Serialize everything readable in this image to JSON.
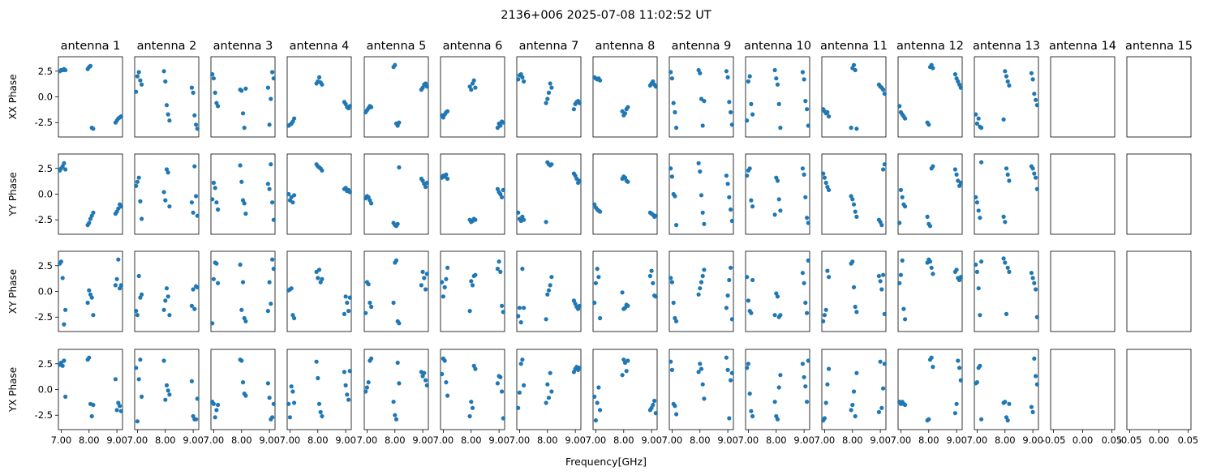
{
  "figure": {
    "title": "2136+006 2025-07-08 11:02:52 UT",
    "xlabel": "Frequency[GHz]"
  },
  "chart_data": {
    "type": "scatter",
    "title": "2136+006 2025-07-08 11:02:52 UT",
    "xlabel": "Frequency[GHz]",
    "point_color": "#1f77b4",
    "antennas": [
      "antenna 1",
      "antenna 2",
      "antenna 3",
      "antenna 4",
      "antenna 5",
      "antenna 6",
      "antenna 7",
      "antenna 8",
      "antenna 9",
      "antenna 10",
      "antenna 11",
      "antenna 12",
      "antenna 13",
      "antenna 14",
      "antenna 15"
    ],
    "rows": [
      "XX Phase",
      "YY Phase",
      "XY Phase",
      "YX Phase"
    ],
    "x_ticks": [
      "7.00",
      "8.00",
      "9.00"
    ],
    "x_ticks_empty": [
      "-0.05",
      "0.00",
      "0.05"
    ],
    "y_ticks": [
      "2.5",
      "0.0",
      "-2.5"
    ],
    "xlim": [
      6.9,
      9.2
    ],
    "ylim": [
      -3.9,
      3.9
    ],
    "freqs": [
      6.95,
      7.0,
      7.05,
      7.1,
      7.15,
      7.95,
      8.0,
      8.05,
      8.1,
      8.15,
      8.95,
      9.0,
      9.05,
      9.1,
      9.15
    ],
    "panels": [
      [
        [
          2.5,
          2.6,
          2.6,
          2.7,
          2.6,
          2.7,
          2.9,
          3.0,
          -3.0,
          -3.1,
          -2.5,
          -2.3,
          -2.1,
          -2.0,
          -1.9
        ],
        [
          0.5,
          2.0,
          2.4,
          1.6,
          1.2,
          2.5,
          1.5,
          -0.8,
          -1.7,
          -2.3,
          0.9,
          0.4,
          -1.8,
          -2.7,
          -3.1
        ],
        [
          2.2,
          1.8,
          0.4,
          -0.6,
          -0.9,
          0.7,
          0.6,
          -1.6,
          -3.0,
          0.8,
          0.9,
          -2.7,
          -0.2,
          2.4,
          1.8
        ],
        [
          -2.8,
          -2.7,
          -2.6,
          -2.4,
          -2.1,
          1.3,
          1.5,
          1.9,
          1.4,
          1.2,
          -0.5,
          -0.7,
          -1.0,
          -1.1,
          -0.9
        ],
        [
          -1.5,
          -1.3,
          -1.1,
          -0.9,
          -1.0,
          2.9,
          3.1,
          -2.6,
          -2.8,
          -2.5,
          0.7,
          0.9,
          1.2,
          1.3,
          1.0
        ],
        [
          -1.8,
          -2.0,
          -1.7,
          -1.5,
          -1.4,
          1.0,
          0.7,
          1.3,
          1.6,
          0.9,
          -3.0,
          -2.6,
          -2.8,
          -2.4,
          -2.5
        ],
        [
          1.7,
          2.1,
          2.2,
          1.9,
          1.5,
          -0.6,
          -0.2,
          0.4,
          1.3,
          0.9,
          -1.2,
          -0.7,
          -0.5,
          -0.4,
          -0.6
        ],
        [
          1.9,
          1.8,
          1.7,
          1.8,
          1.6,
          -1.4,
          -1.8,
          -1.6,
          -1.2,
          -1.0,
          1.1,
          1.3,
          1.5,
          1.2,
          1.0
        ],
        [
          2.4,
          1.8,
          -0.6,
          -1.5,
          -3.0,
          2.6,
          2.3,
          -0.2,
          -2.8,
          -0.4,
          2.5,
          1.9,
          -0.5,
          -1.5,
          -2.7
        ],
        [
          -2.3,
          1.5,
          2.0,
          -0.7,
          -1.7,
          2.6,
          1.8,
          1.2,
          -0.7,
          -3.0,
          2.4,
          1.7,
          -0.4,
          -1.2,
          -2.8
        ],
        [
          -1.2,
          -1.4,
          -1.6,
          -1.5,
          -1.9,
          -3.0,
          2.8,
          3.1,
          2.6,
          -3.1,
          1.2,
          1.0,
          0.9,
          0.7,
          0.3
        ],
        [
          -0.9,
          -1.5,
          -1.7,
          -1.9,
          -2.1,
          -2.5,
          -2.7,
          2.9,
          3.1,
          2.8,
          2.2,
          1.8,
          1.5,
          1.2,
          0.9
        ],
        [
          -1.7,
          -2.6,
          -2.1,
          -2.9,
          -3.0,
          -2.2,
          2.5,
          2.0,
          1.5,
          1.1,
          2.3,
          1.7,
          0.3,
          -0.3,
          -0.8
        ],
        [],
        []
      ],
      [
        [
          2.3,
          2.5,
          2.7,
          3.0,
          2.4,
          -3.0,
          -2.8,
          -2.4,
          -2.1,
          -1.8,
          -1.9,
          -1.7,
          -1.4,
          -1.0,
          -1.2
        ],
        [
          0.8,
          1.2,
          1.6,
          -0.7,
          -2.4,
          0.2,
          -0.6,
          2.4,
          2.1,
          -1.2,
          -0.8,
          -1.8,
          2.7,
          -0.2,
          -2.1
        ],
        [
          -0.5,
          1.1,
          0.6,
          -0.8,
          -1.5,
          2.8,
          1.2,
          -0.6,
          -0.9,
          -1.9,
          1.0,
          0.5,
          2.9,
          -0.8,
          -2.5
        ],
        [
          0.0,
          -0.6,
          -0.3,
          -0.8,
          -0.1,
          2.9,
          2.7,
          2.6,
          2.5,
          2.3,
          0.5,
          0.6,
          0.3,
          0.4,
          0.2
        ],
        [
          -0.4,
          -0.2,
          -0.3,
          -0.6,
          -0.9,
          -2.8,
          -3.0,
          -3.1,
          -2.9,
          2.6,
          1.5,
          1.3,
          1.0,
          0.7,
          1.1
        ],
        [
          1.6,
          1.8,
          1.7,
          1.9,
          1.5,
          -2.5,
          -2.7,
          -2.6,
          -2.4,
          -2.5,
          0.5,
          0.2,
          0.0,
          -0.3,
          0.4
        ],
        [
          -1.8,
          -2.4,
          -2.6,
          -2.2,
          -2.5,
          -2.7,
          3.1,
          2.9,
          2.8,
          2.9,
          2.0,
          1.8,
          1.5,
          1.1,
          1.3
        ],
        [
          -1.0,
          -1.3,
          -1.5,
          -1.6,
          -1.7,
          1.5,
          1.7,
          1.6,
          1.3,
          1.2,
          -1.8,
          -1.9,
          -2.0,
          -2.2,
          -2.1
        ],
        [
          2.5,
          1.7,
          0.0,
          -0.2,
          -3.0,
          3.0,
          2.2,
          -0.1,
          -1.8,
          -2.9,
          1.8,
          1.0,
          -0.3,
          -1.5,
          -2.6
        ],
        [
          1.8,
          2.3,
          2.5,
          -0.6,
          -1.2,
          -2.0,
          1.6,
          1.3,
          -0.5,
          -1.6,
          2.5,
          1.9,
          -0.3,
          -2.3,
          -2.8
        ],
        [
          2.0,
          1.6,
          1.1,
          0.7,
          0.4,
          -0.2,
          -0.5,
          -1.0,
          -1.7,
          -2.2,
          -2.5,
          -2.7,
          -3.0,
          2.4,
          2.9
        ],
        [
          -2.8,
          0.4,
          -0.3,
          -1.0,
          -1.2,
          -2.2,
          -2.9,
          -3.1,
          2.5,
          2.7,
          2.4,
          1.9,
          1.3,
          0.8,
          1.1
        ],
        [
          -0.3,
          -0.8,
          -1.6,
          -2.3,
          3.1,
          -2.2,
          -2.7,
          2.5,
          1.9,
          1.3,
          2.7,
          2.5,
          2.0,
          1.6,
          0.5
        ],
        [],
        []
      ],
      [
        [
          2.7,
          2.9,
          1.3,
          -3.2,
          -1.8,
          -1.1,
          0.1,
          -0.3,
          -0.6,
          -2.3,
          0.6,
          1.2,
          3.1,
          0.3,
          0.6
        ],
        [
          -1.9,
          -2.3,
          1.5,
          -0.6,
          -0.3,
          -1.8,
          -0.9,
          0.3,
          -0.5,
          -2.3,
          -1.4,
          0.2,
          -1.7,
          0.5,
          0.4
        ],
        [
          -3.1,
          1.2,
          2.8,
          2.7,
          0.8,
          2.6,
          -1.8,
          0.9,
          -2.6,
          -2.9,
          -1.9,
          0.9,
          -1.2,
          3.1,
          2.2
        ],
        [
          0.1,
          0.2,
          0.3,
          -2.3,
          -2.6,
          1.9,
          1.3,
          2.1,
          0.9,
          1.2,
          -2.2,
          -0.5,
          -1.1,
          -1.9,
          -0.6
        ],
        [
          -2.1,
          0.9,
          0.7,
          -1.1,
          -1.5,
          -1.1,
          2.8,
          3.0,
          -2.9,
          -3.1,
          0.6,
          1.9,
          1.3,
          0.2,
          1.7
        ],
        [
          0.9,
          -0.5,
          0.4,
          1.2,
          2.3,
          -1.9,
          1.0,
          0.6,
          1.5,
          1.6,
          2.2,
          2.9,
          1.9,
          -1.4,
          -2.0
        ],
        [
          -2.4,
          -1.6,
          -3.0,
          2.2,
          -1.6,
          -2.7,
          -0.3,
          0.1,
          0.6,
          1.4,
          -0.9,
          -1.2,
          -1.5,
          -1.7,
          -1.4
        ],
        [
          -1.1,
          0.8,
          2.2,
          1.4,
          -2.6,
          -0.1,
          -1.7,
          -1.6,
          -1.3,
          -1.4,
          1.5,
          2.0,
          0.8,
          -0.4,
          -0.5
        ],
        [
          1.3,
          0.9,
          -1.1,
          -2.6,
          -2.9,
          -0.3,
          0.3,
          0.9,
          1.5,
          2.1,
          -1.6,
          -0.4,
          1.1,
          2.3,
          -2.7
        ],
        [
          1.4,
          -0.9,
          -1.9,
          -2.1,
          1.1,
          -2.3,
          -0.2,
          -0.5,
          -2.5,
          -2.3,
          1.8,
          0.8,
          -1.1,
          -2.1,
          3.0
        ],
        [
          -2.9,
          -2.3,
          -1.8,
          2.0,
          1.4,
          2.7,
          2.9,
          0.4,
          -1.5,
          -2.0,
          1.5,
          1.0,
          0.2,
          1.6,
          -2.2
        ],
        [
          0.8,
          1.6,
          3.0,
          -1.7,
          -2.7,
          2.8,
          3.1,
          2.9,
          2.3,
          1.7,
          1.9,
          2.1,
          1.3,
          1.1,
          1.4
        ],
        [
          2.6,
          1.9,
          0.3,
          -2.3,
          2.9,
          3.2,
          2.8,
          -2.2,
          2.3,
          1.9,
          1.8,
          1.3,
          0.8,
          0.2,
          -2.5
        ],
        [],
        []
      ],
      [
        [
          2.4,
          2.6,
          2.3,
          2.8,
          -0.7,
          2.9,
          3.1,
          -1.4,
          -2.6,
          -1.5,
          1.0,
          -2.0,
          -1.3,
          -1.6,
          -2.1
        ],
        [
          2.1,
          -3.1,
          1.0,
          2.9,
          -0.7,
          2.8,
          -1.0,
          0.4,
          -0.1,
          -0.5,
          0.8,
          -2.6,
          -2.9,
          -2.9,
          -0.9
        ],
        [
          -1.2,
          -1.4,
          -2.7,
          -2.0,
          -1.5,
          2.9,
          2.8,
          0.7,
          -0.4,
          -0.6,
          0.6,
          -0.8,
          -2.9,
          -2.7,
          -1.4
        ],
        [
          -1.4,
          -2.7,
          0.3,
          -0.2,
          -1.3,
          2.7,
          1.1,
          -1.4,
          -2.2,
          -2.6,
          1.7,
          0.4,
          -0.5,
          -1.0,
          1.8
        ],
        [
          -0.2,
          0.2,
          0.7,
          2.8,
          3.0,
          -1.2,
          -2.5,
          -2.9,
          2.6,
          0.6,
          1.7,
          1.3,
          1.6,
          0.9,
          0.4
        ],
        [
          1.5,
          3.0,
          2.8,
          0.7,
          -0.6,
          -2.6,
          -1.2,
          -1.8,
          2.3,
          2.0,
          0.6,
          1.3,
          1.2,
          -0.2,
          -2.8
        ],
        [
          -1.8,
          -0.3,
          2.5,
          2.9,
          0.4,
          -1.3,
          0.5,
          -0.8,
          1.6,
          -0.2,
          1.7,
          2.0,
          2.2,
          1.9,
          2.1
        ],
        [
          -0.7,
          -3.0,
          -1.3,
          0.2,
          -2.0,
          1.4,
          2.9,
          2.6,
          1.8,
          2.8,
          -2.0,
          -1.8,
          -1.5,
          -1.1,
          -2.3
        ],
        [
          2.7,
          1.9,
          -1.4,
          -1.6,
          -2.4,
          1.7,
          2.5,
          2.0,
          0.5,
          -0.9,
          3.1,
          1.9,
          -2.8,
          0.9,
          1.6
        ],
        [
          2.1,
          2.5,
          -0.4,
          -2.1,
          -2.6,
          -1.2,
          -2.6,
          -2.9,
          0.2,
          1.4,
          2.5,
          1.2,
          0.3,
          -1.2,
          2.8
        ],
        [
          -3.0,
          -2.8,
          -1.3,
          0.5,
          2.0,
          -2.0,
          -1.5,
          -0.2,
          -2.6,
          1.6,
          -2.2,
          2.7,
          -1.8,
          0.1,
          2.5
        ],
        [
          -1.2,
          -1.4,
          -1.2,
          -1.4,
          -1.5,
          -3.0,
          -2.9,
          2.9,
          3.1,
          2.2,
          -2.3,
          -1.4,
          2.8,
          2.1,
          0.9
        ],
        [
          0.6,
          0.7,
          2.1,
          2.3,
          -2.9,
          -1.3,
          -1.2,
          -2.7,
          -3.0,
          -1.4,
          -1.7,
          -2.2,
          3.0,
          1.3,
          0.5
        ],
        [],
        []
      ]
    ]
  }
}
